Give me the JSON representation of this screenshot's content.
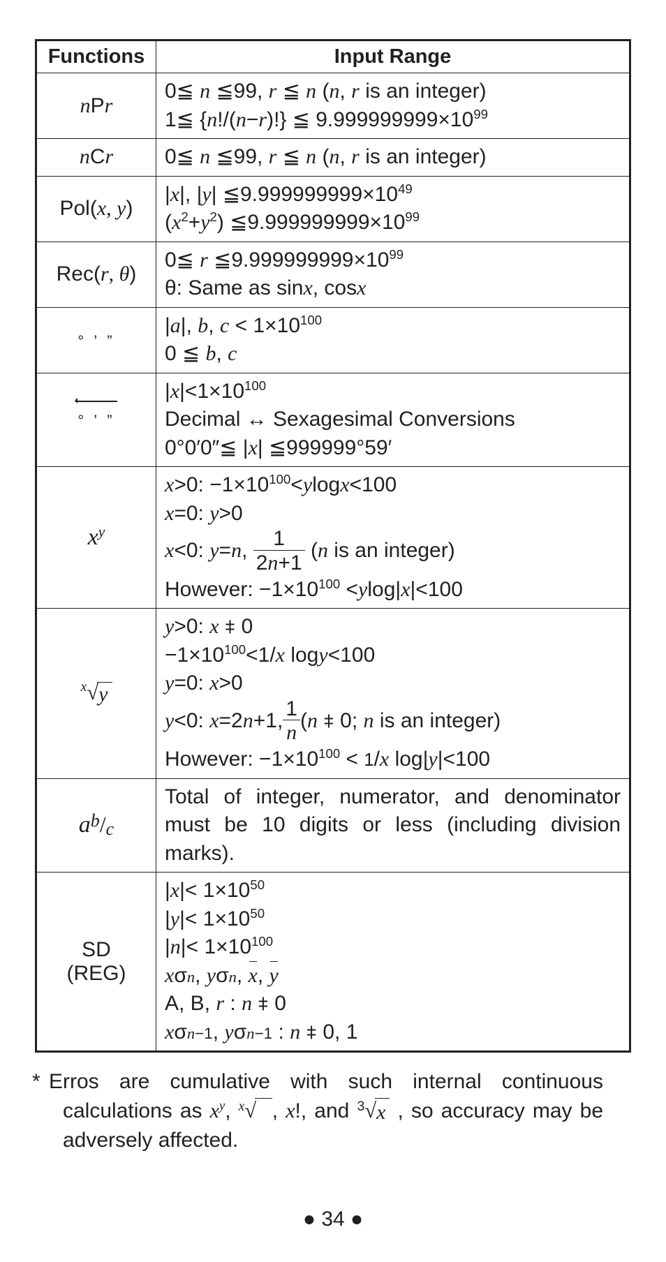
{
  "header": {
    "functions": "Functions",
    "inputRange": "Input Range"
  },
  "rows": {
    "nPr": {
      "fn_pre": "n",
      "fn_mid": "P",
      "fn_post": "r"
    },
    "nCr": {
      "fn_pre": "n",
      "fn_mid": "C",
      "fn_post": "r"
    },
    "pol": {
      "fn": "Pol(",
      "args": "x, y",
      "close": ")"
    },
    "rec": {
      "fn": "Rec(",
      "args": "r, θ",
      "close": ")"
    },
    "dms": {
      "label": "° ' \""
    },
    "dmsConv": {
      "label": "° ' \""
    },
    "xy": {
      "base": "x",
      "exp": "y"
    },
    "xroot": {
      "exp": "x",
      "rad": "y"
    },
    "abc": {
      "a": "a",
      "b": "b",
      "c": "c"
    },
    "sd": {
      "l1": "SD",
      "l2": "(REG)"
    }
  },
  "text": {
    "nPr1": "0≦ n ≦99, r ≦ n (n, r is an integer)",
    "nPr2": "1≦ {n!/(n−r)!} ≦ 9.999999999×10",
    "nPr2exp": "99",
    "nCr1": "0≦ n ≦99, r ≦ n (n, r is an integer)",
    "pol1a": "|x|, |y| ≦9.999999999×10",
    "pol1exp": "49",
    "pol2a": "(x",
    "pol2b": "+y",
    "pol2c": ") ≦9.999999999×10",
    "pol2exp": "99",
    "rec1a": "0≦ r ≦9.999999999×10",
    "rec1exp": "99",
    "rec2": "θ: Same as sinx, cosx",
    "dms1a": "|a|, b, c < 1×10",
    "dms1exp": "100",
    "dms2": "0 ≦ b, c",
    "dmsc1a": "|x|<1×10",
    "dmsc1exp": "100",
    "dmsc2": "Decimal ↔ Sexagesimal Conversions",
    "dmsc3a": "0°0'0\"≦ |x| ≦999999°59'",
    "xy1a": "x>0: −1×10",
    "xy1exp": "100",
    "xy1b": "<ylogx<100",
    "xy2": "x=0: y>0",
    "xy3a": "x<0: y=n, ",
    "xy3num": "1",
    "xy3den": "2n+1",
    "xy3b": " (n is an integer)",
    "xy4a": "However: −1×10",
    "xy4exp": "100",
    "xy4b": " <ylog|x|<100",
    "xr1": "y>0: x ⧧ 0",
    "xr2a": "−1×10",
    "xr2exp": "100",
    "xr2b": "<1/x logy<100",
    "xr3": "y=0: x>0",
    "xr4a": "y<0: x=2n+1,",
    "xr4num": "1",
    "xr4den": "n",
    "xr4b": "(n ⧧ 0; n is an integer)",
    "xr5a": "However: −1×10",
    "xr5exp": "100",
    "xr5b": " < 1/x log|y|<100",
    "abc": "Total of integer, numerator, and denominator must be 10 digits or less (including division marks).",
    "sd1a": "|x|< 1×10",
    "sd1exp": "50",
    "sd2a": "|y|< 1×10",
    "sd2exp": "50",
    "sd3a": "|n|< 1×10",
    "sd3exp": "100",
    "sd4": "xσn, yσn, x̄, ȳ",
    "sd5": "A, B, r : n ⧧ 0",
    "sd6": "xσn−1, yσn−1 : n ⧧ 0, 1"
  },
  "footnote": {
    "pre": "Erros are cumulative with such internal continuous calculations as ",
    "mid": ", so accuracy may be adversely affected."
  },
  "pagenum": "34",
  "colors": {
    "ink": "#231f20",
    "bg": "#ffffff"
  }
}
